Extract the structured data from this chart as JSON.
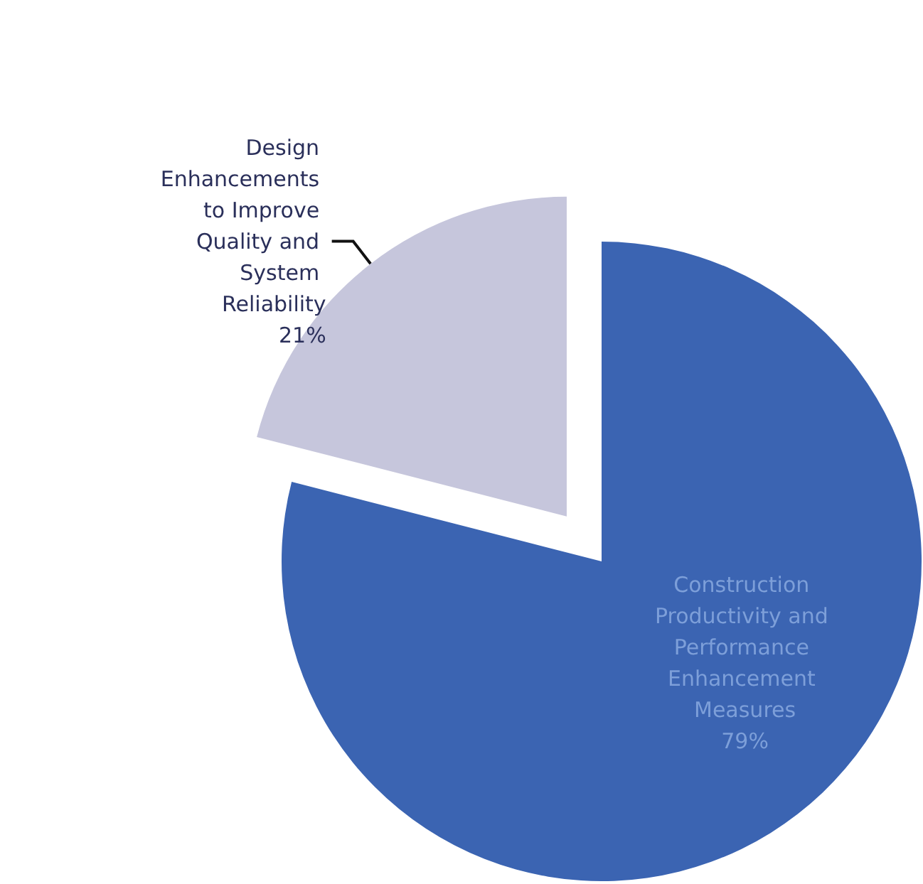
{
  "chart_data": {
    "type": "pie",
    "categories": [
      "Construction Productivity and Performance Enhancement Measures",
      "Design Enhancements to Improve Quality and System Reliability"
    ],
    "values": [
      79,
      21
    ],
    "colors": [
      "#3b64b2",
      "#c6c6dc"
    ],
    "value_labels": [
      "79%",
      "21%"
    ],
    "legend": false
  }
}
